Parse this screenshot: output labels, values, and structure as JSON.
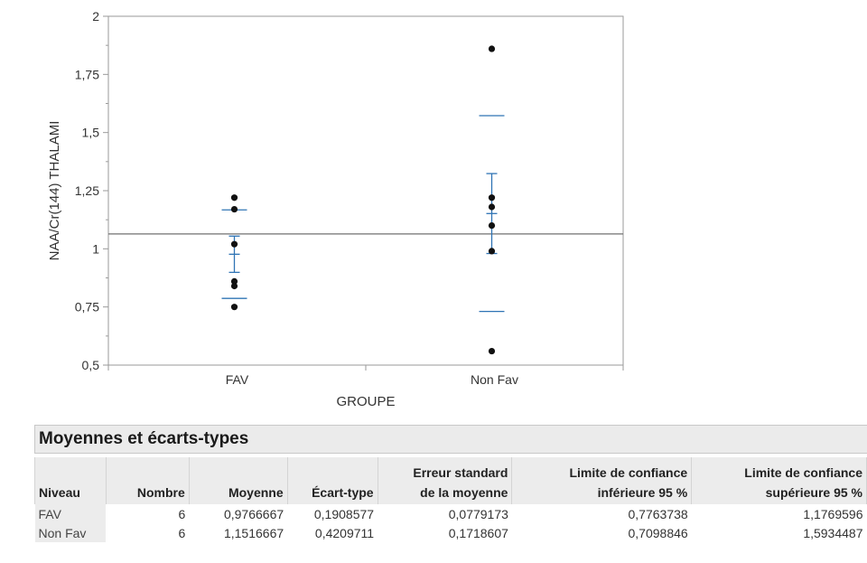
{
  "chart_data": {
    "type": "scatter",
    "ylabel": "NAA/Cr(144) THALAMI",
    "xlabel": "GROUPE",
    "categories": [
      "FAV",
      "Non Fav"
    ],
    "ylim": [
      0.5,
      2
    ],
    "yticks": [
      "0,5",
      "0,75",
      "1",
      "1,25",
      "1,5",
      "1,75",
      "2"
    ],
    "y_tick_values": [
      0.5,
      0.75,
      1,
      1.25,
      1.5,
      1.75,
      2
    ],
    "grand_mean": 1.064,
    "groups": [
      {
        "name": "FAV",
        "points": [
          1.22,
          1.17,
          1.02,
          0.86,
          0.84,
          0.75
        ],
        "mean": 0.9766667,
        "se_lower": 0.8987494,
        "se_upper": 1.054584,
        "sd_lower": 0.786809,
        "sd_upper": 1.1675244
      },
      {
        "name": "Non Fav",
        "points": [
          1.86,
          1.22,
          1.18,
          1.1,
          0.99,
          0.56
        ],
        "mean": 1.1516667,
        "se_lower": 0.979806,
        "se_upper": 1.3235274,
        "sd_lower": 0.7306956,
        "sd_upper": 1.5726378
      }
    ],
    "grid": false,
    "legend": "none"
  },
  "table": {
    "title": "Moyennes et écarts-types",
    "headers": {
      "niveau": "Niveau",
      "nombre": "Nombre",
      "moyenne": "Moyenne",
      "ecart_type": "Écart-type",
      "erreur_l1": "Erreur standard",
      "erreur_l2": "de la moyenne",
      "lci_l1": "Limite de confiance",
      "lci_l2": "inférieure 95 %",
      "lcs_l1": "Limite de confiance",
      "lcs_l2": "supérieure 95 %"
    },
    "rows": [
      {
        "niveau": "FAV",
        "nombre": "6",
        "moyenne": "0,9766667",
        "ecart_type": "0,1908577",
        "erreur": "0,0779173",
        "lci": "0,7763738",
        "lcs": "1,1769596"
      },
      {
        "niveau": "Non Fav",
        "nombre": "6",
        "moyenne": "1,1516667",
        "ecart_type": "0,4209711",
        "erreur": "0,1718607",
        "lci": "0,7098846",
        "lcs": "1,5934487"
      }
    ]
  },
  "colors": {
    "points": "#111111",
    "error_bars": "#2f74b5",
    "grand_mean": "#707070",
    "frame": "#9a9a9a"
  }
}
